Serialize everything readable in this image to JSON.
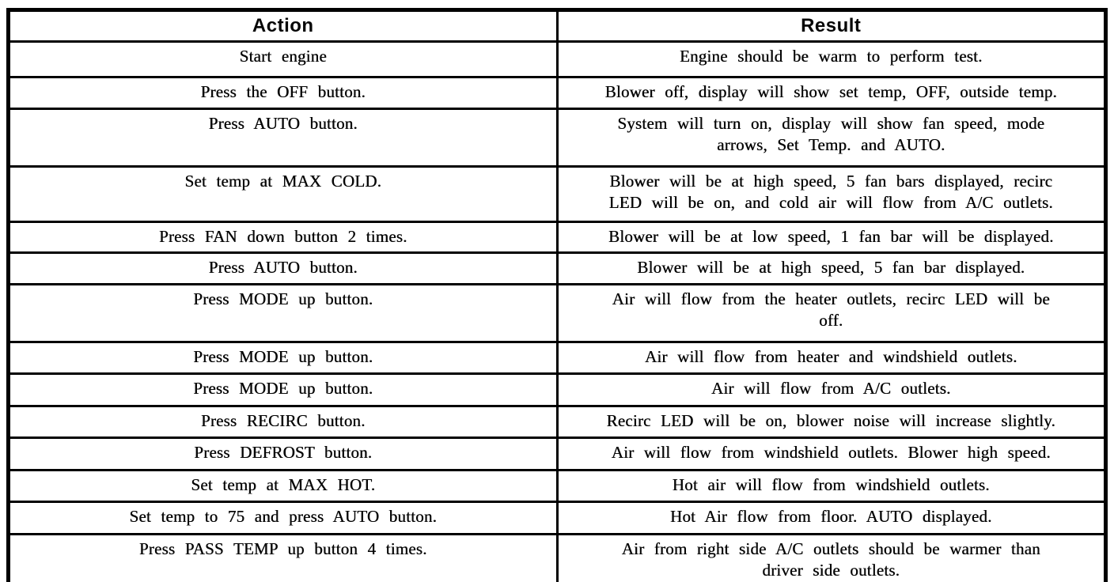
{
  "table": {
    "headers": [
      "Action",
      "Result"
    ],
    "rows": [
      {
        "action": "Start engine",
        "result": "Engine should be warm to perform test."
      },
      {
        "action": "Press the OFF button.",
        "result": "Blower off, display will show set temp, OFF, outside temp."
      },
      {
        "action": "Press AUTO button.",
        "result": "System will turn on, display will show fan speed, mode\narrows, Set Temp. and AUTO."
      },
      {
        "action": "Set temp at MAX COLD.",
        "result": "Blower will be at high speed, 5 fan bars displayed, recirc\nLED will be on, and cold air will flow from A/C outlets."
      },
      {
        "action": "Press FAN down button 2 times.",
        "result": "Blower will be at low speed, 1 fan bar will be displayed."
      },
      {
        "action": "Press AUTO button.",
        "result": "Blower will be at high speed, 5 fan bar displayed."
      },
      {
        "action": "Press MODE up button.",
        "result": "Air will flow from the heater outlets, recirc LED will be\noff."
      },
      {
        "action": "Press MODE up button.",
        "result": "Air will flow from heater and windshield outlets."
      },
      {
        "action": "Press MODE up button.",
        "result": "Air will flow from A/C outlets."
      },
      {
        "action": "Press RECIRC button.",
        "result": "Recirc LED will be on, blower noise will increase slightly."
      },
      {
        "action": "Press DEFROST button.",
        "result": "Air will flow from windshield outlets. Blower high speed."
      },
      {
        "action": "Set temp at MAX HOT.",
        "result": "Hot air will flow from windshield outlets."
      },
      {
        "action": "Set temp to 75 and press AUTO button.",
        "result": "Hot Air flow from floor. AUTO displayed."
      },
      {
        "action": "Press PASS TEMP up button 4 times.",
        "result": "Air from right side A/C outlets should be warmer than\ndriver side outlets."
      }
    ]
  }
}
